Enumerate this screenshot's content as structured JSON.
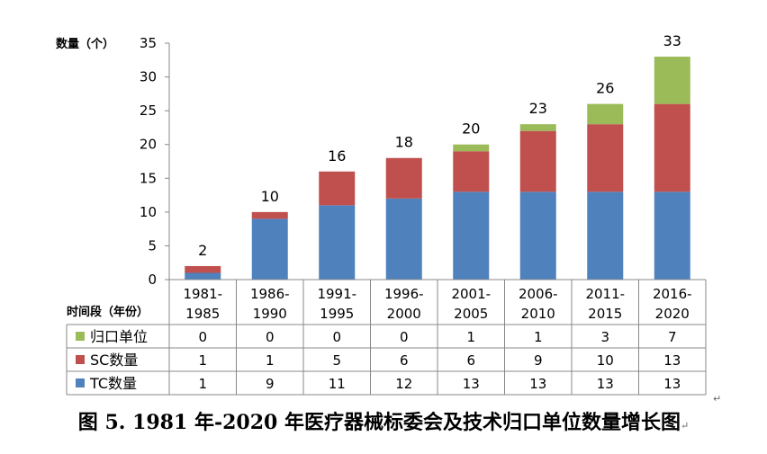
{
  "chart_data": {
    "type": "bar",
    "stacked": true,
    "categories": [
      [
        "1981-",
        "1985"
      ],
      [
        "1986-",
        "1990"
      ],
      [
        "1991-",
        "1995"
      ],
      [
        "1996-",
        "2000"
      ],
      [
        "2001-",
        "2005"
      ],
      [
        "2006-",
        "2010"
      ],
      [
        "2011-",
        "2015"
      ],
      [
        "2016-",
        "2020"
      ]
    ],
    "series": [
      {
        "name": "TC数量",
        "color": "#4F81BD",
        "values": [
          1,
          9,
          11,
          12,
          13,
          13,
          13,
          13
        ]
      },
      {
        "name": "SC数量",
        "color": "#C0504D",
        "values": [
          1,
          1,
          5,
          6,
          6,
          9,
          10,
          13
        ]
      },
      {
        "name": "归口单位",
        "color": "#9BBB59",
        "values": [
          0,
          0,
          0,
          0,
          1,
          1,
          3,
          7
        ]
      }
    ],
    "totals": [
      2,
      10,
      16,
      18,
      20,
      23,
      26,
      33
    ],
    "ylabel": "数量（个）",
    "xlabel": "时间段（年份）",
    "ylim": [
      0,
      35
    ],
    "yticks": [
      0,
      5,
      10,
      15,
      20,
      25,
      30,
      35
    ],
    "table_series_order": [
      "归口单位",
      "SC数量",
      "TC数量"
    ]
  },
  "caption": "图 5. 1981 年-2020 年医疗器械标委会及技术归口单位数量增长图",
  "marks": {
    "return_symbol": "↵"
  }
}
